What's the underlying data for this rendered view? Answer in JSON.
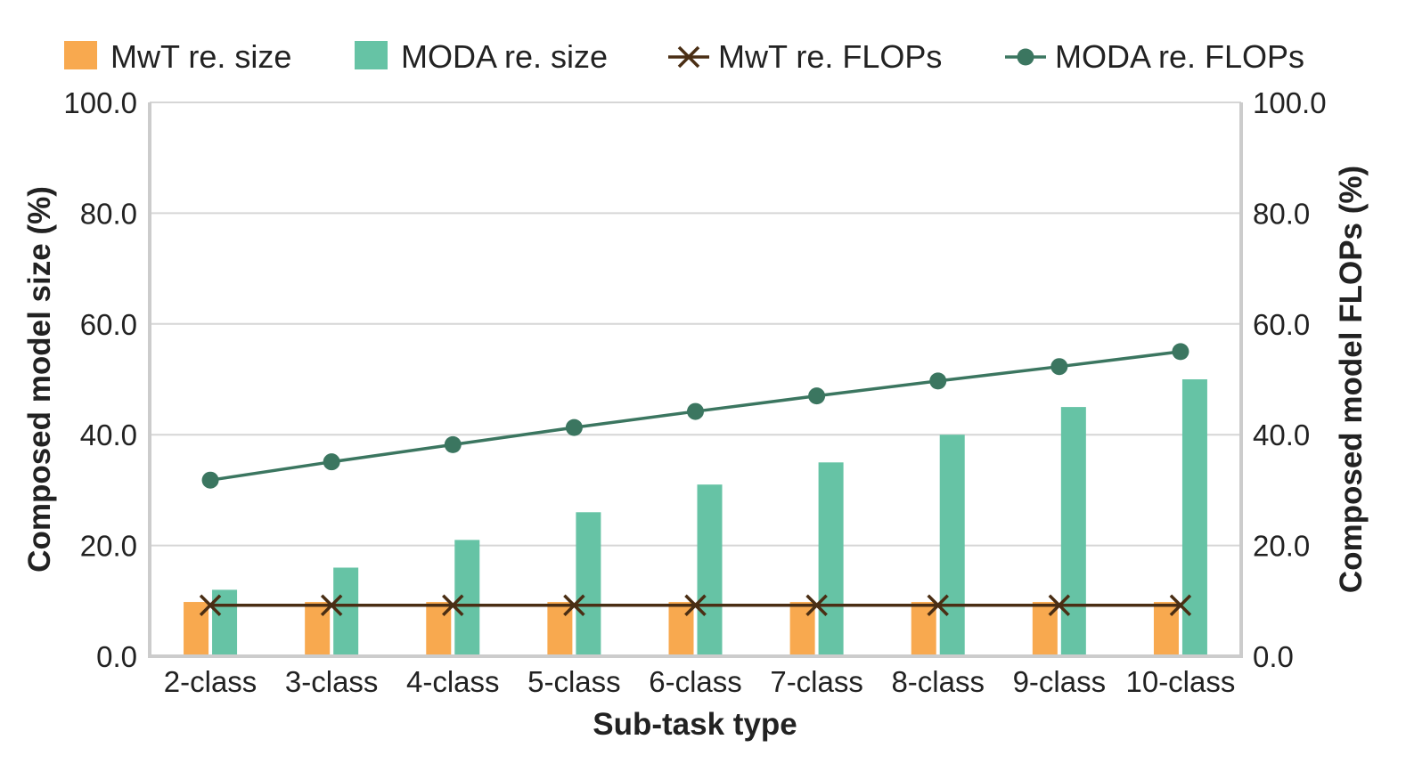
{
  "chart_data": {
    "type": "bar",
    "categories": [
      "2-class",
      "3-class",
      "4-class",
      "5-class",
      "6-class",
      "7-class",
      "8-class",
      "9-class",
      "10-class"
    ],
    "series": [
      {
        "name": "MwT re. size",
        "kind": "bar",
        "axis": "left",
        "color": "#f8a94f",
        "values": [
          9.8,
          9.8,
          9.8,
          9.8,
          9.8,
          9.8,
          9.8,
          9.8,
          9.8
        ]
      },
      {
        "name": "MODA re. size",
        "kind": "bar",
        "axis": "left",
        "color": "#66c3a5",
        "values": [
          12.0,
          16.0,
          21.0,
          26.0,
          31.0,
          35.0,
          40.0,
          45.0,
          50.0
        ]
      },
      {
        "name": "MwT re. FLOPs",
        "kind": "line",
        "marker": "x",
        "axis": "right",
        "color": "#4a2e14",
        "values": [
          9.2,
          9.2,
          9.2,
          9.2,
          9.2,
          9.2,
          9.2,
          9.2,
          9.2
        ]
      },
      {
        "name": "MODA re. FLOPs",
        "kind": "line",
        "marker": "circle",
        "axis": "right",
        "color": "#3b7660",
        "values": [
          31.8,
          35.1,
          38.2,
          41.3,
          44.2,
          47.0,
          49.7,
          52.3,
          55.0
        ]
      }
    ],
    "xlabel": "Sub-task type",
    "ylabel": "Composed model size (%)",
    "ylabel_right": "Composed model FLOPs (%)",
    "ylim": [
      0,
      100
    ],
    "ylim_right": [
      0,
      100
    ],
    "yticks": [
      "0.0",
      "20.0",
      "40.0",
      "60.0",
      "80.0",
      "100.0"
    ],
    "ytick_values": [
      0,
      20,
      40,
      60,
      80,
      100
    ],
    "grid": true,
    "legend_position": "top"
  }
}
